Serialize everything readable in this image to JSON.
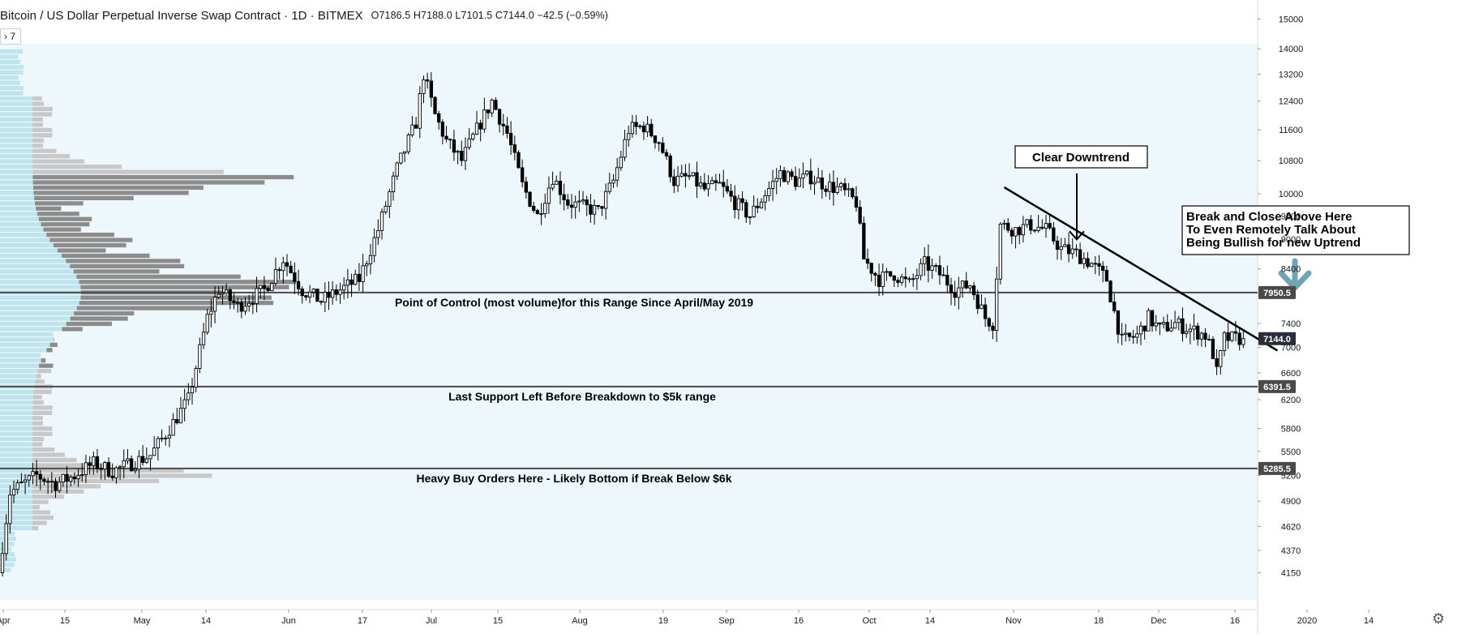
{
  "header": {
    "title": "Bitcoin / US Dollar Perpetual Inverse Swap Contract · 1D · BITMEX",
    "ohlc": "O7186.5  H7188.0  L7101.5  C7144.0  −42.5 (−0.59%)"
  },
  "indicator_toggle": {
    "label": "7"
  },
  "icons": {
    "settings": "gear-icon",
    "collapse": "chevron-right-icon",
    "arrow": "down-arrow-icon"
  },
  "colors": {
    "shade": "#eef7fb",
    "candle": "#000000",
    "profile_dark": "#8c8c8c",
    "profile_light": "#c8c8c8",
    "profile_cyan": "#bfe4ee",
    "marker": "#4a4a4a",
    "arrow": "#6fa4b5"
  },
  "chart_data": {
    "type": "candlestick",
    "y_axis": {
      "ticks": [
        15000,
        14000,
        13200,
        12400,
        11600,
        10800,
        10000,
        9500,
        9000,
        8400,
        7400,
        7000,
        6600,
        6200,
        5800,
        5500,
        5200,
        4900,
        4620,
        4370,
        4150
      ],
      "scale": "log",
      "range": [
        4000,
        15300
      ]
    },
    "x_axis": {
      "labels": [
        "Apr",
        "15",
        "May",
        "14",
        "Jun",
        "17",
        "Jul",
        "15",
        "Aug",
        "19",
        "Sep",
        "16",
        "Oct",
        "14",
        "Nov",
        "18",
        "Dec",
        "16",
        "2020",
        "14"
      ]
    },
    "anchors": [
      {
        "t": 0,
        "v": 4150
      },
      {
        "t": 3,
        "v": 5000
      },
      {
        "t": 10,
        "v": 5200
      },
      {
        "t": 15,
        "v": 5100
      },
      {
        "t": 20,
        "v": 5200
      },
      {
        "t": 25,
        "v": 5350
      },
      {
        "t": 30,
        "v": 5250
      },
      {
        "t": 35,
        "v": 5350
      },
      {
        "t": 40,
        "v": 5450
      },
      {
        "t": 45,
        "v": 5800
      },
      {
        "t": 50,
        "v": 6200
      },
      {
        "t": 55,
        "v": 7500
      },
      {
        "t": 58,
        "v": 8000
      },
      {
        "t": 63,
        "v": 7700
      },
      {
        "t": 70,
        "v": 8000
      },
      {
        "t": 75,
        "v": 8600
      },
      {
        "t": 80,
        "v": 8000
      },
      {
        "t": 85,
        "v": 7800
      },
      {
        "t": 90,
        "v": 8000
      },
      {
        "t": 95,
        "v": 8200
      },
      {
        "t": 100,
        "v": 9200
      },
      {
        "t": 105,
        "v": 10600
      },
      {
        "t": 110,
        "v": 11800
      },
      {
        "t": 112,
        "v": 13200
      },
      {
        "t": 115,
        "v": 12000
      },
      {
        "t": 118,
        "v": 11300
      },
      {
        "t": 122,
        "v": 10800
      },
      {
        "t": 126,
        "v": 11600
      },
      {
        "t": 130,
        "v": 12400
      },
      {
        "t": 134,
        "v": 11500
      },
      {
        "t": 138,
        "v": 10200
      },
      {
        "t": 142,
        "v": 9500
      },
      {
        "t": 146,
        "v": 10400
      },
      {
        "t": 150,
        "v": 9800
      },
      {
        "t": 154,
        "v": 9700
      },
      {
        "t": 158,
        "v": 9600
      },
      {
        "t": 162,
        "v": 10300
      },
      {
        "t": 166,
        "v": 11600
      },
      {
        "t": 170,
        "v": 11700
      },
      {
        "t": 174,
        "v": 11300
      },
      {
        "t": 178,
        "v": 10300
      },
      {
        "t": 182,
        "v": 10400
      },
      {
        "t": 186,
        "v": 10100
      },
      {
        "t": 190,
        "v": 10200
      },
      {
        "t": 194,
        "v": 9800
      },
      {
        "t": 198,
        "v": 9500
      },
      {
        "t": 202,
        "v": 10000
      },
      {
        "t": 206,
        "v": 10500
      },
      {
        "t": 210,
        "v": 10300
      },
      {
        "t": 214,
        "v": 10400
      },
      {
        "t": 218,
        "v": 10200
      },
      {
        "t": 222,
        "v": 10100
      },
      {
        "t": 226,
        "v": 9800
      },
      {
        "t": 228,
        "v": 8600
      },
      {
        "t": 232,
        "v": 8200
      },
      {
        "t": 236,
        "v": 8300
      },
      {
        "t": 240,
        "v": 8100
      },
      {
        "t": 244,
        "v": 8500
      },
      {
        "t": 248,
        "v": 8300
      },
      {
        "t": 252,
        "v": 8000
      },
      {
        "t": 256,
        "v": 8100
      },
      {
        "t": 260,
        "v": 7500
      },
      {
        "t": 262,
        "v": 7400
      },
      {
        "t": 264,
        "v": 9300
      },
      {
        "t": 268,
        "v": 9200
      },
      {
        "t": 272,
        "v": 9300
      },
      {
        "t": 276,
        "v": 9200
      },
      {
        "t": 280,
        "v": 8800
      },
      {
        "t": 284,
        "v": 8700
      },
      {
        "t": 288,
        "v": 8500
      },
      {
        "t": 292,
        "v": 8200
      },
      {
        "t": 294,
        "v": 7600
      },
      {
        "t": 296,
        "v": 7100
      },
      {
        "t": 300,
        "v": 7200
      },
      {
        "t": 303,
        "v": 7500
      },
      {
        "t": 306,
        "v": 7300
      },
      {
        "t": 310,
        "v": 7400
      },
      {
        "t": 314,
        "v": 7300
      },
      {
        "t": 318,
        "v": 7200
      },
      {
        "t": 320,
        "v": 6900
      },
      {
        "t": 321,
        "v": 6600
      },
      {
        "t": 323,
        "v": 7150
      },
      {
        "t": 327,
        "v": 7144
      }
    ],
    "n_days": 328,
    "horizontal_levels": [
      {
        "value": 7950.5,
        "label": "7950.5",
        "annotation": "Point of Control (most volume)for this Range Since April/May 2019"
      },
      {
        "value": 6391.5,
        "label": "6391.5",
        "annotation": "Last Support Left Before Breakdown to $5k range"
      },
      {
        "value": 5285.5,
        "label": "5285.5",
        "annotation": "Heavy Buy Orders Here - Likely Bottom if Break Below $6k"
      }
    ],
    "last_price": {
      "value": 7144.0,
      "label": "7144.0"
    },
    "trendline": {
      "from": {
        "t": 264,
        "v": 10150
      },
      "to": {
        "t": 336,
        "v": 6950
      }
    },
    "callouts": [
      {
        "lines": [
          "Clear Downtrend"
        ],
        "points_to": {
          "t": 287,
          "v": 9200
        }
      },
      {
        "lines": [
          "Break and Close Above Here",
          "To Even Remotely Talk About",
          "Being Bullish for new Uptrend"
        ]
      }
    ],
    "volume_profile": {
      "price_range": [
        4150,
        14000
      ],
      "rows": 100,
      "value_area": [
        6700,
        10500
      ],
      "poc": 7950
    }
  }
}
